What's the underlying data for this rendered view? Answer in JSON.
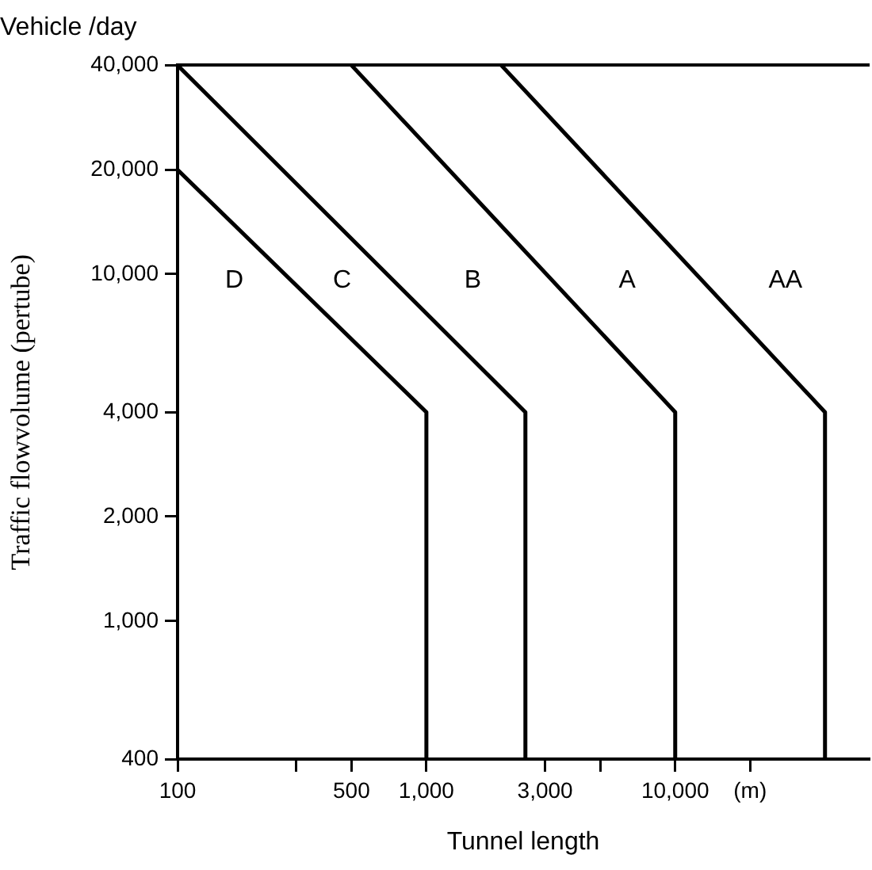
{
  "chart_data": {
    "type": "line",
    "title": "Vehicle /day",
    "xlabel": "Tunnel length",
    "ylabel": "Traffic flowvolume (pertube)",
    "log": "xy",
    "grid": false,
    "legend": false,
    "marker": "none",
    "line_style": "solid",
    "xlim": [
      100,
      60000
    ],
    "ylim": [
      400,
      40000
    ],
    "xticks": [
      100,
      {
        "value": 300,
        "label": null
      },
      500,
      {
        "value": 1000,
        "label": "1,000"
      },
      {
        "value": 3000,
        "label": "3,000"
      },
      {
        "value": 5000,
        "label": null
      },
      {
        "value": 10000,
        "label": "10,000"
      },
      {
        "value": 20000,
        "label": "(m)"
      }
    ],
    "yticks": [
      400,
      {
        "value": 1000,
        "label": "1,000"
      },
      {
        "value": 2000,
        "label": "2,000"
      },
      {
        "value": 4000,
        "label": "4,000"
      },
      {
        "value": 10000,
        "label": "10,000"
      },
      {
        "value": 20000,
        "label": "20,000"
      },
      {
        "value": 40000,
        "label": "40,000"
      }
    ],
    "series": [
      {
        "color": "#000000",
        "x": [
          100,
          1000,
          1000
        ],
        "values": [
          20000,
          4000,
          400
        ]
      },
      {
        "color": "#000000",
        "x": [
          100,
          2500,
          2500
        ],
        "values": [
          40000,
          4000,
          400
        ]
      },
      {
        "color": "#000000",
        "x": [
          500,
          10000,
          10000
        ],
        "values": [
          40000,
          4000,
          400
        ]
      },
      {
        "color": "#000000",
        "x": [
          2000,
          40000,
          40000
        ],
        "values": [
          40000,
          4000,
          400
        ]
      }
    ],
    "annotations": [
      "D",
      "C",
      "B",
      "A",
      "AA"
    ]
  }
}
